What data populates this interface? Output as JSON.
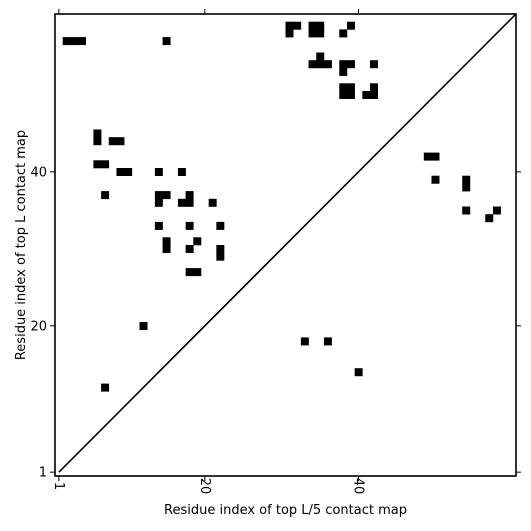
{
  "chart_data": {
    "type": "heatmap",
    "title": "",
    "xlabel": "Residue index of top L/5 contact map",
    "ylabel": "Residue index of top L contact map",
    "xlim": [
      1,
      60
    ],
    "ylim": [
      1,
      60
    ],
    "x_ticks": [
      1,
      20,
      40
    ],
    "y_ticks": [
      1,
      20,
      40
    ],
    "diagonal": true,
    "grid": false,
    "cell_color": "#000000",
    "upper_cells": [
      [
        2,
        57
      ],
      [
        3,
        57
      ],
      [
        4,
        57
      ],
      [
        15,
        57
      ],
      [
        31,
        58
      ],
      [
        31,
        59
      ],
      [
        32,
        59
      ],
      [
        34,
        58
      ],
      [
        34,
        59
      ],
      [
        35,
        58
      ],
      [
        35,
        59
      ],
      [
        39,
        59
      ],
      [
        38,
        58
      ],
      [
        35,
        55
      ],
      [
        34,
        54
      ],
      [
        35,
        54
      ],
      [
        36,
        54
      ],
      [
        38,
        54
      ],
      [
        39,
        54
      ],
      [
        38,
        53
      ],
      [
        42,
        54
      ],
      [
        38,
        50
      ],
      [
        38,
        51
      ],
      [
        39,
        50
      ],
      [
        39,
        51
      ],
      [
        41,
        50
      ],
      [
        42,
        50
      ],
      [
        42,
        51
      ],
      [
        6,
        45
      ],
      [
        6,
        44
      ],
      [
        8,
        44
      ],
      [
        9,
        44
      ],
      [
        6,
        41
      ],
      [
        7,
        41
      ],
      [
        9,
        40
      ],
      [
        10,
        40
      ],
      [
        14,
        40
      ],
      [
        17,
        40
      ],
      [
        7,
        37
      ],
      [
        14,
        37
      ],
      [
        15,
        37
      ],
      [
        14,
        36
      ],
      [
        18,
        37
      ],
      [
        17,
        36
      ],
      [
        18,
        36
      ],
      [
        21,
        36
      ],
      [
        14,
        33
      ],
      [
        18,
        33
      ],
      [
        22,
        33
      ],
      [
        15,
        31
      ],
      [
        15,
        30
      ],
      [
        19,
        31
      ],
      [
        18,
        30
      ],
      [
        22,
        30
      ],
      [
        22,
        29
      ],
      [
        18,
        27
      ],
      [
        19,
        27
      ],
      [
        12,
        20
      ],
      [
        7,
        12
      ],
      [
        49,
        42
      ],
      [
        50,
        42
      ],
      [
        50,
        39
      ],
      [
        54,
        39
      ],
      [
        54,
        38
      ],
      [
        54,
        35
      ],
      [
        57,
        34
      ],
      [
        58,
        35
      ]
    ],
    "lower_cells": [
      [
        33,
        18
      ],
      [
        36,
        18
      ],
      [
        40,
        14
      ]
    ]
  }
}
